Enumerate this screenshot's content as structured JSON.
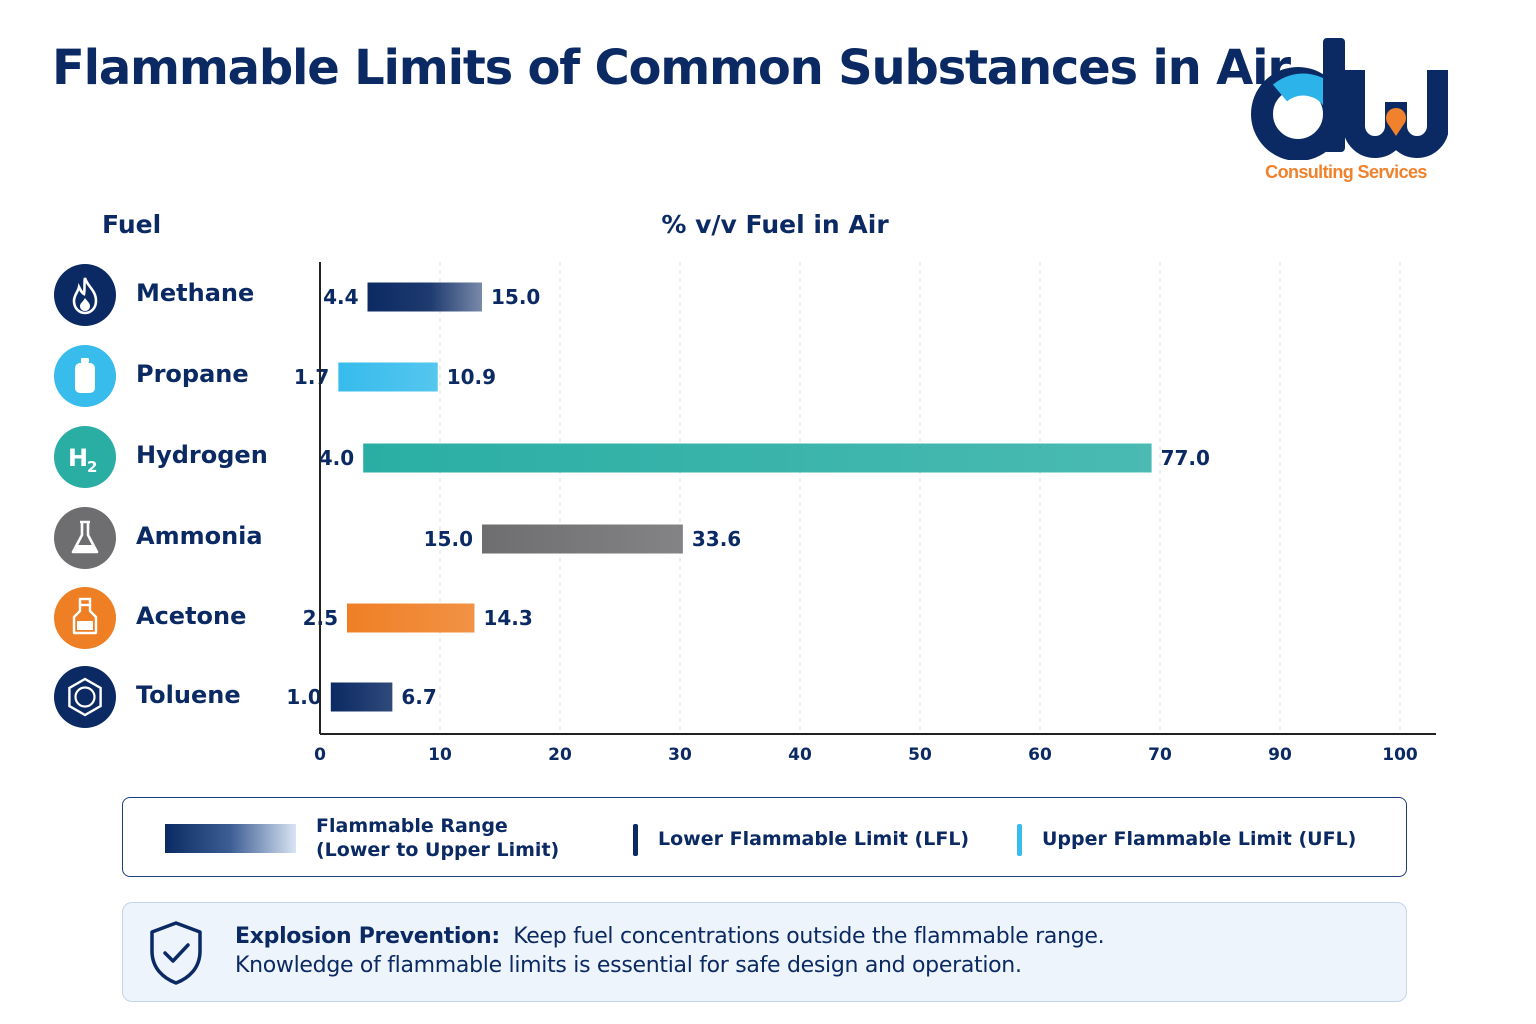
{
  "title": "Flammable Limits of Common Substances in Air",
  "logo": {
    "text": "dW",
    "tagline": "Consulting Services",
    "colors": {
      "navy": "#0b2a63",
      "cyan": "#2bb3ea",
      "orange": "#f0822d"
    }
  },
  "fuel_header": "Fuel",
  "fuels": [
    {
      "name": "Methane",
      "icon": "flame-icon",
      "color": "#0b2a63"
    },
    {
      "name": "Propane",
      "icon": "gas-cylinder-icon",
      "color": "#37bcec"
    },
    {
      "name": "Hydrogen",
      "icon": "h2-icon",
      "color": "#2aaea4"
    },
    {
      "name": "Ammonia",
      "icon": "flask-icon",
      "color": "#6e6e70"
    },
    {
      "name": "Acetone",
      "icon": "bottle-icon",
      "color": "#ef7f25"
    },
    {
      "name": "Toluene",
      "icon": "benzene-ring-icon",
      "color": "#0b2a63"
    }
  ],
  "chart_data": {
    "type": "bar",
    "orientation": "horizontal",
    "xlabel": "% v/v Fuel in Air",
    "x_ticks": [
      0,
      10,
      20,
      30,
      40,
      50,
      60,
      70,
      90,
      100
    ],
    "xlim": [
      0,
      100
    ],
    "grid": "vertical dashed",
    "categories": [
      "Methane",
      "Propane",
      "Hydrogen",
      "Ammonia",
      "Acetone",
      "Toluene"
    ],
    "series": [
      {
        "name": "Lower Flammable Limit (LFL)",
        "values": [
          4.4,
          1.7,
          4.0,
          15.0,
          2.5,
          1.0
        ]
      },
      {
        "name": "Upper Flammable Limit (UFL)",
        "values": [
          15.0,
          10.9,
          77.0,
          33.6,
          14.3,
          6.7
        ]
      }
    ],
    "lfl_labels": [
      "4.4",
      "1.7",
      "4.0",
      "15.0",
      "2.5",
      "1.0"
    ],
    "ufl_labels": [
      "15.0",
      "10.9",
      "77.0",
      "33.6",
      "14.3",
      "6.7"
    ],
    "bar_colors": [
      "#0b2a63",
      "#37bcec",
      "#2aaea4",
      "#6e6e70",
      "#ef7f25",
      "#0b2a63"
    ]
  },
  "legend": {
    "range_label_line1": "Flammable Range",
    "range_label_line2": "(Lower to Upper Limit)",
    "lfl_label": "Lower Flammable Limit (LFL)",
    "ufl_label": "Upper Flammable Limit (UFL)",
    "lfl_color": "#0b2a63",
    "ufl_color": "#37bcec"
  },
  "note": {
    "heading": "Explosion Prevention:",
    "line1": "Keep fuel concentrations outside the flammable range.",
    "line2": "Knowledge of flammable limits is essential for safe design and operation.",
    "icon": "shield-check-icon"
  }
}
